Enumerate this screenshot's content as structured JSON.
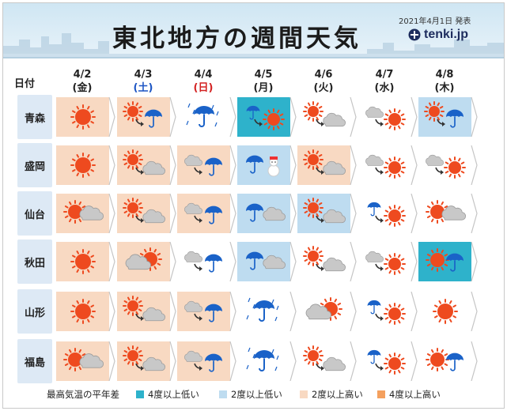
{
  "title": "東北地方の週間天気",
  "issued": "2021年4月1日 発表",
  "logo": "tenki.jp",
  "corner_label": "日付",
  "days": [
    {
      "date": "4/2",
      "weekday": "(金)",
      "type": "weekday"
    },
    {
      "date": "4/3",
      "weekday": "(土)",
      "type": "sat"
    },
    {
      "date": "4/4",
      "weekday": "(日)",
      "type": "sun"
    },
    {
      "date": "4/5",
      "weekday": "(月)",
      "type": "weekday"
    },
    {
      "date": "4/6",
      "weekday": "(火)",
      "type": "weekday"
    },
    {
      "date": "4/7",
      "weekday": "(水)",
      "type": "weekday"
    },
    {
      "date": "4/8",
      "weekday": "(木)",
      "type": "weekday"
    }
  ],
  "rows": [
    {
      "city": "青森",
      "cells": [
        {
          "icon": "sun",
          "anomaly": "h2"
        },
        {
          "icon": "sun-then-rain",
          "anomaly": "h2"
        },
        {
          "icon": "rain",
          "anomaly": "none"
        },
        {
          "icon": "rain-then-sun",
          "anomaly": "lc4"
        },
        {
          "icon": "sun-then-cloud",
          "anomaly": "none"
        },
        {
          "icon": "cloud-then-sun",
          "anomaly": "none"
        },
        {
          "icon": "sun-then-rain",
          "anomaly": "lc"
        }
      ]
    },
    {
      "city": "盛岡",
      "cells": [
        {
          "icon": "sun",
          "anomaly": "h2"
        },
        {
          "icon": "sun-then-cloud",
          "anomaly": "h2"
        },
        {
          "icon": "cloud-then-rain",
          "anomaly": "h2"
        },
        {
          "icon": "rain-then-snow",
          "anomaly": "lc"
        },
        {
          "icon": "sun-then-cloud",
          "anomaly": "h2"
        },
        {
          "icon": "cloud-then-sun",
          "anomaly": "none"
        },
        {
          "icon": "cloud-then-sun",
          "anomaly": "none"
        }
      ]
    },
    {
      "city": "仙台",
      "cells": [
        {
          "icon": "sun-cloud",
          "anomaly": "h2"
        },
        {
          "icon": "sun-then-cloud",
          "anomaly": "h2"
        },
        {
          "icon": "cloud-then-rain",
          "anomaly": "h2"
        },
        {
          "icon": "rain-cloud",
          "anomaly": "lc"
        },
        {
          "icon": "sun-then-cloud",
          "anomaly": "lc"
        },
        {
          "icon": "rain-then-sun",
          "anomaly": "none"
        },
        {
          "icon": "sun-cloud",
          "anomaly": "none"
        }
      ]
    },
    {
      "city": "秋田",
      "cells": [
        {
          "icon": "sun",
          "anomaly": "h2"
        },
        {
          "icon": "cloud-sun",
          "anomaly": "h2"
        },
        {
          "icon": "cloud-then-rain",
          "anomaly": "none"
        },
        {
          "icon": "rain-cloud",
          "anomaly": "lc"
        },
        {
          "icon": "sun-then-cloud",
          "anomaly": "none"
        },
        {
          "icon": "cloud-then-sun",
          "anomaly": "none"
        },
        {
          "icon": "sun-rain",
          "anomaly": "lc4"
        }
      ]
    },
    {
      "city": "山形",
      "cells": [
        {
          "icon": "sun",
          "anomaly": "h2"
        },
        {
          "icon": "sun-then-cloud",
          "anomaly": "h2"
        },
        {
          "icon": "cloud-then-rain",
          "anomaly": "h2"
        },
        {
          "icon": "rain",
          "anomaly": "none"
        },
        {
          "icon": "cloud-sun",
          "anomaly": "none"
        },
        {
          "icon": "rain-then-sun",
          "anomaly": "none"
        },
        {
          "icon": "sun",
          "anomaly": "none"
        }
      ]
    },
    {
      "city": "福島",
      "cells": [
        {
          "icon": "sun-cloud",
          "anomaly": "h2"
        },
        {
          "icon": "sun-then-cloud",
          "anomaly": "h2"
        },
        {
          "icon": "cloud-then-rain",
          "anomaly": "h2"
        },
        {
          "icon": "rain",
          "anomaly": "none"
        },
        {
          "icon": "sun-then-cloud",
          "anomaly": "none"
        },
        {
          "icon": "rain-then-sun",
          "anomaly": "none"
        },
        {
          "icon": "sun-rain",
          "anomaly": "none"
        }
      ]
    }
  ],
  "legend": {
    "title": "最高気温の平年差",
    "items": [
      {
        "label": "4度以上低い",
        "color": "#2eb2cb"
      },
      {
        "label": "2度以上低い",
        "color": "#bedcf0"
      },
      {
        "label": "2度以上高い",
        "color": "#f8d9c2"
      },
      {
        "label": "4度以上高い",
        "color": "#f4a05e"
      }
    ]
  },
  "colors": {
    "sun": "#ee4a1f",
    "cloud": "#c8c8c8",
    "umbrella": "#1a62c8",
    "header_bg": "#cfe6f3"
  }
}
